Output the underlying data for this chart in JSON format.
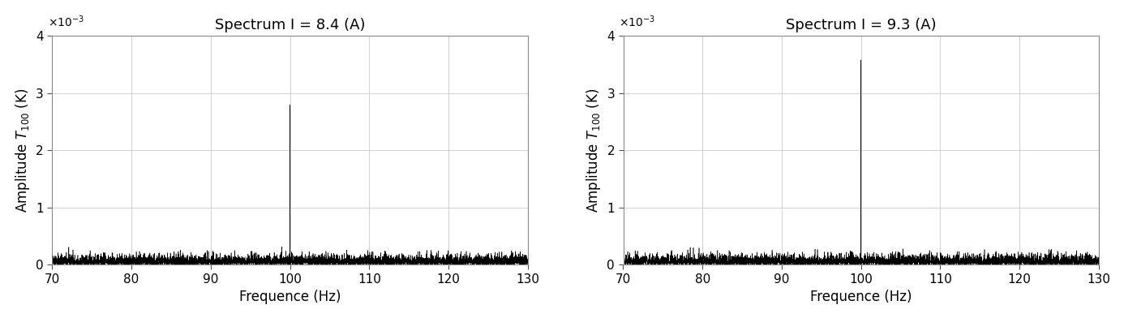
{
  "plots": [
    {
      "title": "Spectrum I = 8.4 (A)",
      "spike_freq": 100.0,
      "spike_amp": 0.0028,
      "noise_level": 8e-05,
      "noise_seed": 42
    },
    {
      "title": "Spectrum I = 9.3 (A)",
      "spike_freq": 100.0,
      "spike_amp": 0.00358,
      "noise_level": 8e-05,
      "noise_seed": 99
    }
  ],
  "freq_min": 70,
  "freq_max": 130,
  "ylim": [
    0,
    0.004
  ],
  "yticks": [
    0,
    0.001,
    0.002,
    0.003,
    0.004
  ],
  "xticks": [
    70,
    80,
    90,
    100,
    110,
    120,
    130
  ],
  "xlabel": "Frequence (Hz)",
  "n_points": 6000,
  "background_color": "#ffffff",
  "plot_color": "#000000",
  "grid_color": "#d0d0d0",
  "figsize": [
    13.86,
    3.92
  ],
  "dpi": 100
}
